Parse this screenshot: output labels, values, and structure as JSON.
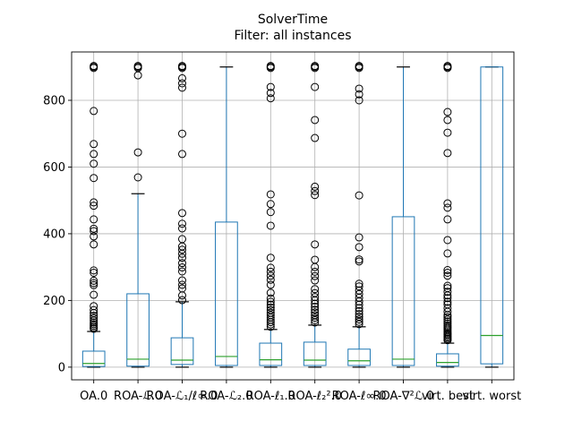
{
  "chart_data": {
    "type": "boxplot",
    "title": "SolverTime",
    "subtitle": "Filter: all instances",
    "xlabel": "",
    "ylabel": "",
    "ylim": [
      -38,
      945
    ],
    "yticks": [
      0,
      200,
      400,
      600,
      800
    ],
    "grid": true,
    "legend": "none",
    "colors": {
      "box": "#1f77b4",
      "whisker": "#1f77b4",
      "median": "#2ca02c",
      "cap": "#000000",
      "flier": "#000000",
      "grid": "#b0b0b0",
      "axis": "#000000",
      "background": "#ffffff"
    },
    "categories": [
      "OA.0",
      "ROA-ℒ.0",
      "ROA-ℒ₁/ℓ∞.0",
      "ROA-ℒ₂.0",
      "ROA-ℓ₁.0",
      "ROA-ℓ₂².0",
      "ROA-ℓ∞.0",
      "ROA-∇²ℒ.0",
      "virt. best",
      "virt. worst"
    ],
    "boxes": [
      {
        "label": "OA.0",
        "whislo": 0,
        "q1": 2,
        "med": 11,
        "q3": 48,
        "whishi": 107,
        "fliers": [
          115,
          119,
          124,
          129,
          134,
          140,
          147,
          154,
          162,
          171,
          183,
          217,
          246,
          252,
          259,
          283,
          290,
          368,
          392,
          408,
          415,
          443,
          484,
          494,
          567,
          610,
          639,
          669,
          768,
          897,
          900,
          903
        ]
      },
      {
        "label": "ROA-ℒ.0",
        "whislo": 0,
        "q1": 3,
        "med": 24,
        "q3": 220,
        "whishi": 520,
        "fliers": [
          569,
          644,
          875,
          897,
          900,
          903
        ]
      },
      {
        "label": "ROA-ℒ₁/ℓ∞.0",
        "whislo": 0,
        "q1": 8,
        "med": 21,
        "q3": 88,
        "whishi": 196,
        "fliers": [
          201,
          215,
          236,
          247,
          260,
          287,
          299,
          312,
          328,
          340,
          352,
          362,
          384,
          416,
          430,
          462,
          639,
          700,
          838,
          851,
          866,
          897,
          900,
          903
        ]
      },
      {
        "label": "ROA-ℒ₂.0",
        "whislo": 0,
        "q1": 5,
        "med": 32,
        "q3": 435,
        "whishi": 900,
        "fliers": []
      },
      {
        "label": "ROA-ℓ₁.0",
        "whislo": 0,
        "q1": 5,
        "med": 22,
        "q3": 72,
        "whishi": 113,
        "fliers": [
          121,
          128,
          135,
          142,
          149,
          156,
          163,
          171,
          179,
          187,
          196,
          206,
          223,
          247,
          262,
          274,
          286,
          298,
          328,
          424,
          465,
          489,
          518,
          806,
          822,
          840,
          897,
          900,
          903
        ]
      },
      {
        "label": "ROA-ℓ₂².0",
        "whislo": 0,
        "q1": 5,
        "med": 21,
        "q3": 75,
        "whishi": 126,
        "fliers": [
          134,
          141,
          148,
          156,
          164,
          172,
          181,
          190,
          200,
          210,
          222,
          234,
          260,
          273,
          286,
          300,
          322,
          368,
          516,
          528,
          541,
          687,
          741,
          840,
          897,
          900,
          903
        ]
      },
      {
        "label": "ROA-ℓ∞.0",
        "whislo": 0,
        "q1": 5,
        "med": 19,
        "q3": 54,
        "whishi": 121,
        "fliers": [
          129,
          136,
          143,
          151,
          159,
          168,
          177,
          187,
          197,
          208,
          219,
          230,
          242,
          250,
          317,
          323,
          360,
          389,
          515,
          800,
          818,
          835,
          897,
          900,
          903
        ]
      },
      {
        "label": "ROA-∇²ℒ.0",
        "whislo": 0,
        "q1": 5,
        "med": 24,
        "q3": 451,
        "whishi": 900,
        "fliers": []
      },
      {
        "label": "virt. best",
        "whislo": 0,
        "q1": 3,
        "med": 14,
        "q3": 40,
        "whishi": 72,
        "fliers": [
          81,
          85,
          89,
          93,
          97,
          101,
          105,
          110,
          115,
          120,
          125,
          131,
          137,
          143,
          150,
          156,
          166,
          177,
          188,
          196,
          207,
          215,
          226,
          237,
          244,
          274,
          283,
          291,
          341,
          381,
          443,
          478,
          491,
          642,
          703,
          741,
          765,
          897,
          900,
          903
        ]
      },
      {
        "label": "virt. worst",
        "whislo": 0,
        "q1": 10,
        "med": 95,
        "q3": 900,
        "whishi": 900,
        "fliers": []
      }
    ]
  }
}
